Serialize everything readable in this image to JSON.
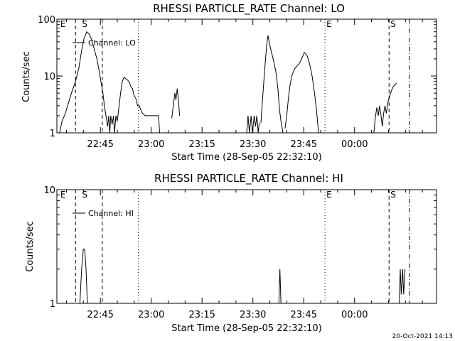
{
  "footer": {
    "timestamp": "20-Oct-2021 14:13"
  },
  "chart_data": [
    {
      "type": "line",
      "title": "RHESSI PARTICLE_RATE Channel: LO",
      "xlabel": "Start Time (28-Sep-05 22:32:10)",
      "ylabel": "Counts/sec",
      "y_scale": "log",
      "ylim": [
        1,
        100
      ],
      "y_ticks": [
        {
          "v": 1,
          "label": "1"
        },
        {
          "v": 10,
          "label": "10"
        },
        {
          "v": 100,
          "label": "100"
        }
      ],
      "xlim_minutes": [
        0,
        112
      ],
      "x_ticks": [
        {
          "t": 12.83,
          "label": "22:45"
        },
        {
          "t": 27.83,
          "label": "23:00"
        },
        {
          "t": 42.83,
          "label": "23:15"
        },
        {
          "t": 57.83,
          "label": "23:30"
        },
        {
          "t": 72.83,
          "label": "23:45"
        },
        {
          "t": 87.83,
          "label": "00:00"
        }
      ],
      "markers": [
        {
          "t": 5.5,
          "style": "dashed",
          "label": ""
        },
        {
          "t": 13.4,
          "style": "dashed",
          "label": ""
        },
        {
          "t": 24.0,
          "style": "dotted",
          "label": ""
        },
        {
          "t": 0.6,
          "style": "none",
          "label": "E"
        },
        {
          "t": 7.0,
          "style": "none",
          "label": "S"
        },
        {
          "t": 79.1,
          "style": "dotted",
          "label": "E"
        },
        {
          "t": 98.0,
          "style": "dashed",
          "label": "S"
        },
        {
          "t": 104.0,
          "style": "dashdot",
          "label": ""
        }
      ],
      "legend": {
        "label": "Channel: LO",
        "position": "top-left"
      },
      "series": [
        {
          "name": "Channel: LO",
          "segments": [
            [
              [
                0.8,
                1
              ],
              [
                1.5,
                1.6
              ],
              [
                2.5,
                2.2
              ],
              [
                3.5,
                3.5
              ],
              [
                4.5,
                5.5
              ],
              [
                5.5,
                8
              ],
              [
                6.5,
                14
              ],
              [
                7.3,
                28
              ],
              [
                8.0,
                45
              ],
              [
                8.8,
                60
              ],
              [
                9.5,
                55
              ],
              [
                10.2,
                45
              ],
              [
                11.0,
                30
              ],
              [
                11.8,
                20
              ],
              [
                12.5,
                12
              ],
              [
                13.0,
                8
              ],
              [
                13.6,
                5
              ],
              [
                14.0,
                3
              ],
              [
                14.5,
                2
              ],
              [
                15.0,
                1.3
              ],
              [
                15.3,
                2
              ],
              [
                15.6,
                1
              ],
              [
                15.9,
                2
              ],
              [
                16.3,
                1.4
              ],
              [
                16.7,
                2
              ],
              [
                17.0,
                1
              ],
              [
                17.4,
                2
              ],
              [
                17.8,
                1.6
              ],
              [
                18.2,
                2.5
              ],
              [
                18.8,
                5
              ],
              [
                19.3,
                8
              ],
              [
                19.8,
                9.5
              ],
              [
                20.3,
                9
              ],
              [
                20.8,
                8.5
              ],
              [
                21.3,
                8
              ],
              [
                21.8,
                6.5
              ],
              [
                22.3,
                6
              ],
              [
                22.8,
                4.5
              ],
              [
                23.3,
                4
              ],
              [
                23.8,
                3
              ],
              [
                24.3,
                3
              ],
              [
                24.8,
                2.5
              ],
              [
                25.3,
                2.2
              ],
              [
                26.0,
                2
              ],
              [
                28.0,
                2
              ],
              [
                30.0,
                2
              ],
              [
                30.3,
                1
              ]
            ],
            [
              [
                33.9,
                1.8
              ],
              [
                34.4,
                3.2
              ],
              [
                34.8,
                5
              ],
              [
                35.1,
                3.8
              ],
              [
                35.5,
                6
              ],
              [
                35.9,
                3.5
              ],
              [
                36.2,
                2
              ]
            ],
            [
              [
                56.0,
                1
              ],
              [
                56.4,
                2
              ],
              [
                56.8,
                1
              ],
              [
                57.3,
                2
              ],
              [
                57.7,
                1
              ],
              [
                58.2,
                2
              ],
              [
                58.6,
                1.3
              ],
              [
                59.0,
                2
              ],
              [
                59.4,
                1
              ],
              [
                59.7,
                1.5
              ]
            ],
            [
              [
                60.2,
                1.5
              ],
              [
                60.8,
                5
              ],
              [
                61.4,
                15
              ],
              [
                61.9,
                35
              ],
              [
                62.3,
                52
              ],
              [
                62.8,
                35
              ],
              [
                63.4,
                25
              ],
              [
                64.0,
                18
              ],
              [
                64.6,
                12
              ],
              [
                65.2,
                6
              ],
              [
                65.7,
                2.5
              ],
              [
                66.2,
                1.5
              ],
              [
                66.7,
                1
              ]
            ],
            [
              [
                67.3,
                1.2
              ],
              [
                67.8,
                2
              ],
              [
                68.3,
                4
              ],
              [
                68.8,
                7
              ],
              [
                69.3,
                10
              ],
              [
                70.0,
                13
              ],
              [
                70.8,
                15
              ],
              [
                71.5,
                16.5
              ],
              [
                72.2,
                20
              ],
              [
                73.0,
                26
              ],
              [
                73.8,
                23
              ],
              [
                74.6,
                16
              ],
              [
                75.3,
                10
              ],
              [
                76.0,
                5
              ],
              [
                76.6,
                2.5
              ],
              [
                77.2,
                1
              ]
            ],
            [
              [
                93.5,
                1
              ],
              [
                94.0,
                2
              ],
              [
                94.4,
                2.8
              ],
              [
                94.8,
                2
              ],
              [
                95.2,
                3
              ],
              [
                95.6,
                2.1
              ],
              [
                96.0,
                1.3
              ],
              [
                96.4,
                2.2
              ],
              [
                96.8,
                3
              ],
              [
                97.2,
                2.2
              ],
              [
                97.7,
                3.5
              ],
              [
                98.2,
                4.5
              ],
              [
                98.7,
                5.5
              ],
              [
                99.2,
                6.5
              ],
              [
                99.7,
                7
              ],
              [
                100.2,
                7.5
              ]
            ]
          ]
        }
      ]
    },
    {
      "type": "line",
      "title": "RHESSI PARTICLE_RATE Channel: HI",
      "xlabel": "Start Time (28-Sep-05 22:32:10)",
      "ylabel": "Counts/sec",
      "y_scale": "log",
      "ylim": [
        1,
        10
      ],
      "y_ticks": [
        {
          "v": 1,
          "label": "1"
        },
        {
          "v": 10,
          "label": "10"
        }
      ],
      "xlim_minutes": [
        0,
        112
      ],
      "x_ticks": [
        {
          "t": 12.83,
          "label": "22:45"
        },
        {
          "t": 27.83,
          "label": "23:00"
        },
        {
          "t": 42.83,
          "label": "23:15"
        },
        {
          "t": 57.83,
          "label": "23:30"
        },
        {
          "t": 72.83,
          "label": "23:45"
        },
        {
          "t": 87.83,
          "label": "00:00"
        }
      ],
      "markers": [
        {
          "t": 5.5,
          "style": "dashed",
          "label": ""
        },
        {
          "t": 13.4,
          "style": "dashed",
          "label": ""
        },
        {
          "t": 24.0,
          "style": "dotted",
          "label": ""
        },
        {
          "t": 0.6,
          "style": "none",
          "label": "E"
        },
        {
          "t": 7.0,
          "style": "none",
          "label": "S"
        },
        {
          "t": 79.1,
          "style": "dotted",
          "label": "E"
        },
        {
          "t": 98.0,
          "style": "dashed",
          "label": "S"
        },
        {
          "t": 104.0,
          "style": "dashdot",
          "label": ""
        }
      ],
      "legend": {
        "label": "Channel: HI",
        "position": "top-left"
      },
      "series": [
        {
          "name": "Channel: HI",
          "segments": [
            [
              [
                6.8,
                1
              ],
              [
                7.3,
                2
              ],
              [
                7.8,
                3
              ],
              [
                8.2,
                3
              ],
              [
                8.6,
                2
              ],
              [
                9.0,
                1
              ]
            ],
            [
              [
                65.5,
                1
              ],
              [
                65.8,
                2
              ],
              [
                66.1,
                1
              ]
            ],
            [
              [
                101.0,
                1
              ],
              [
                101.3,
                2
              ],
              [
                101.6,
                1.2
              ],
              [
                102.0,
                2
              ],
              [
                102.3,
                1.2
              ],
              [
                102.7,
                2
              ]
            ]
          ]
        }
      ]
    }
  ]
}
